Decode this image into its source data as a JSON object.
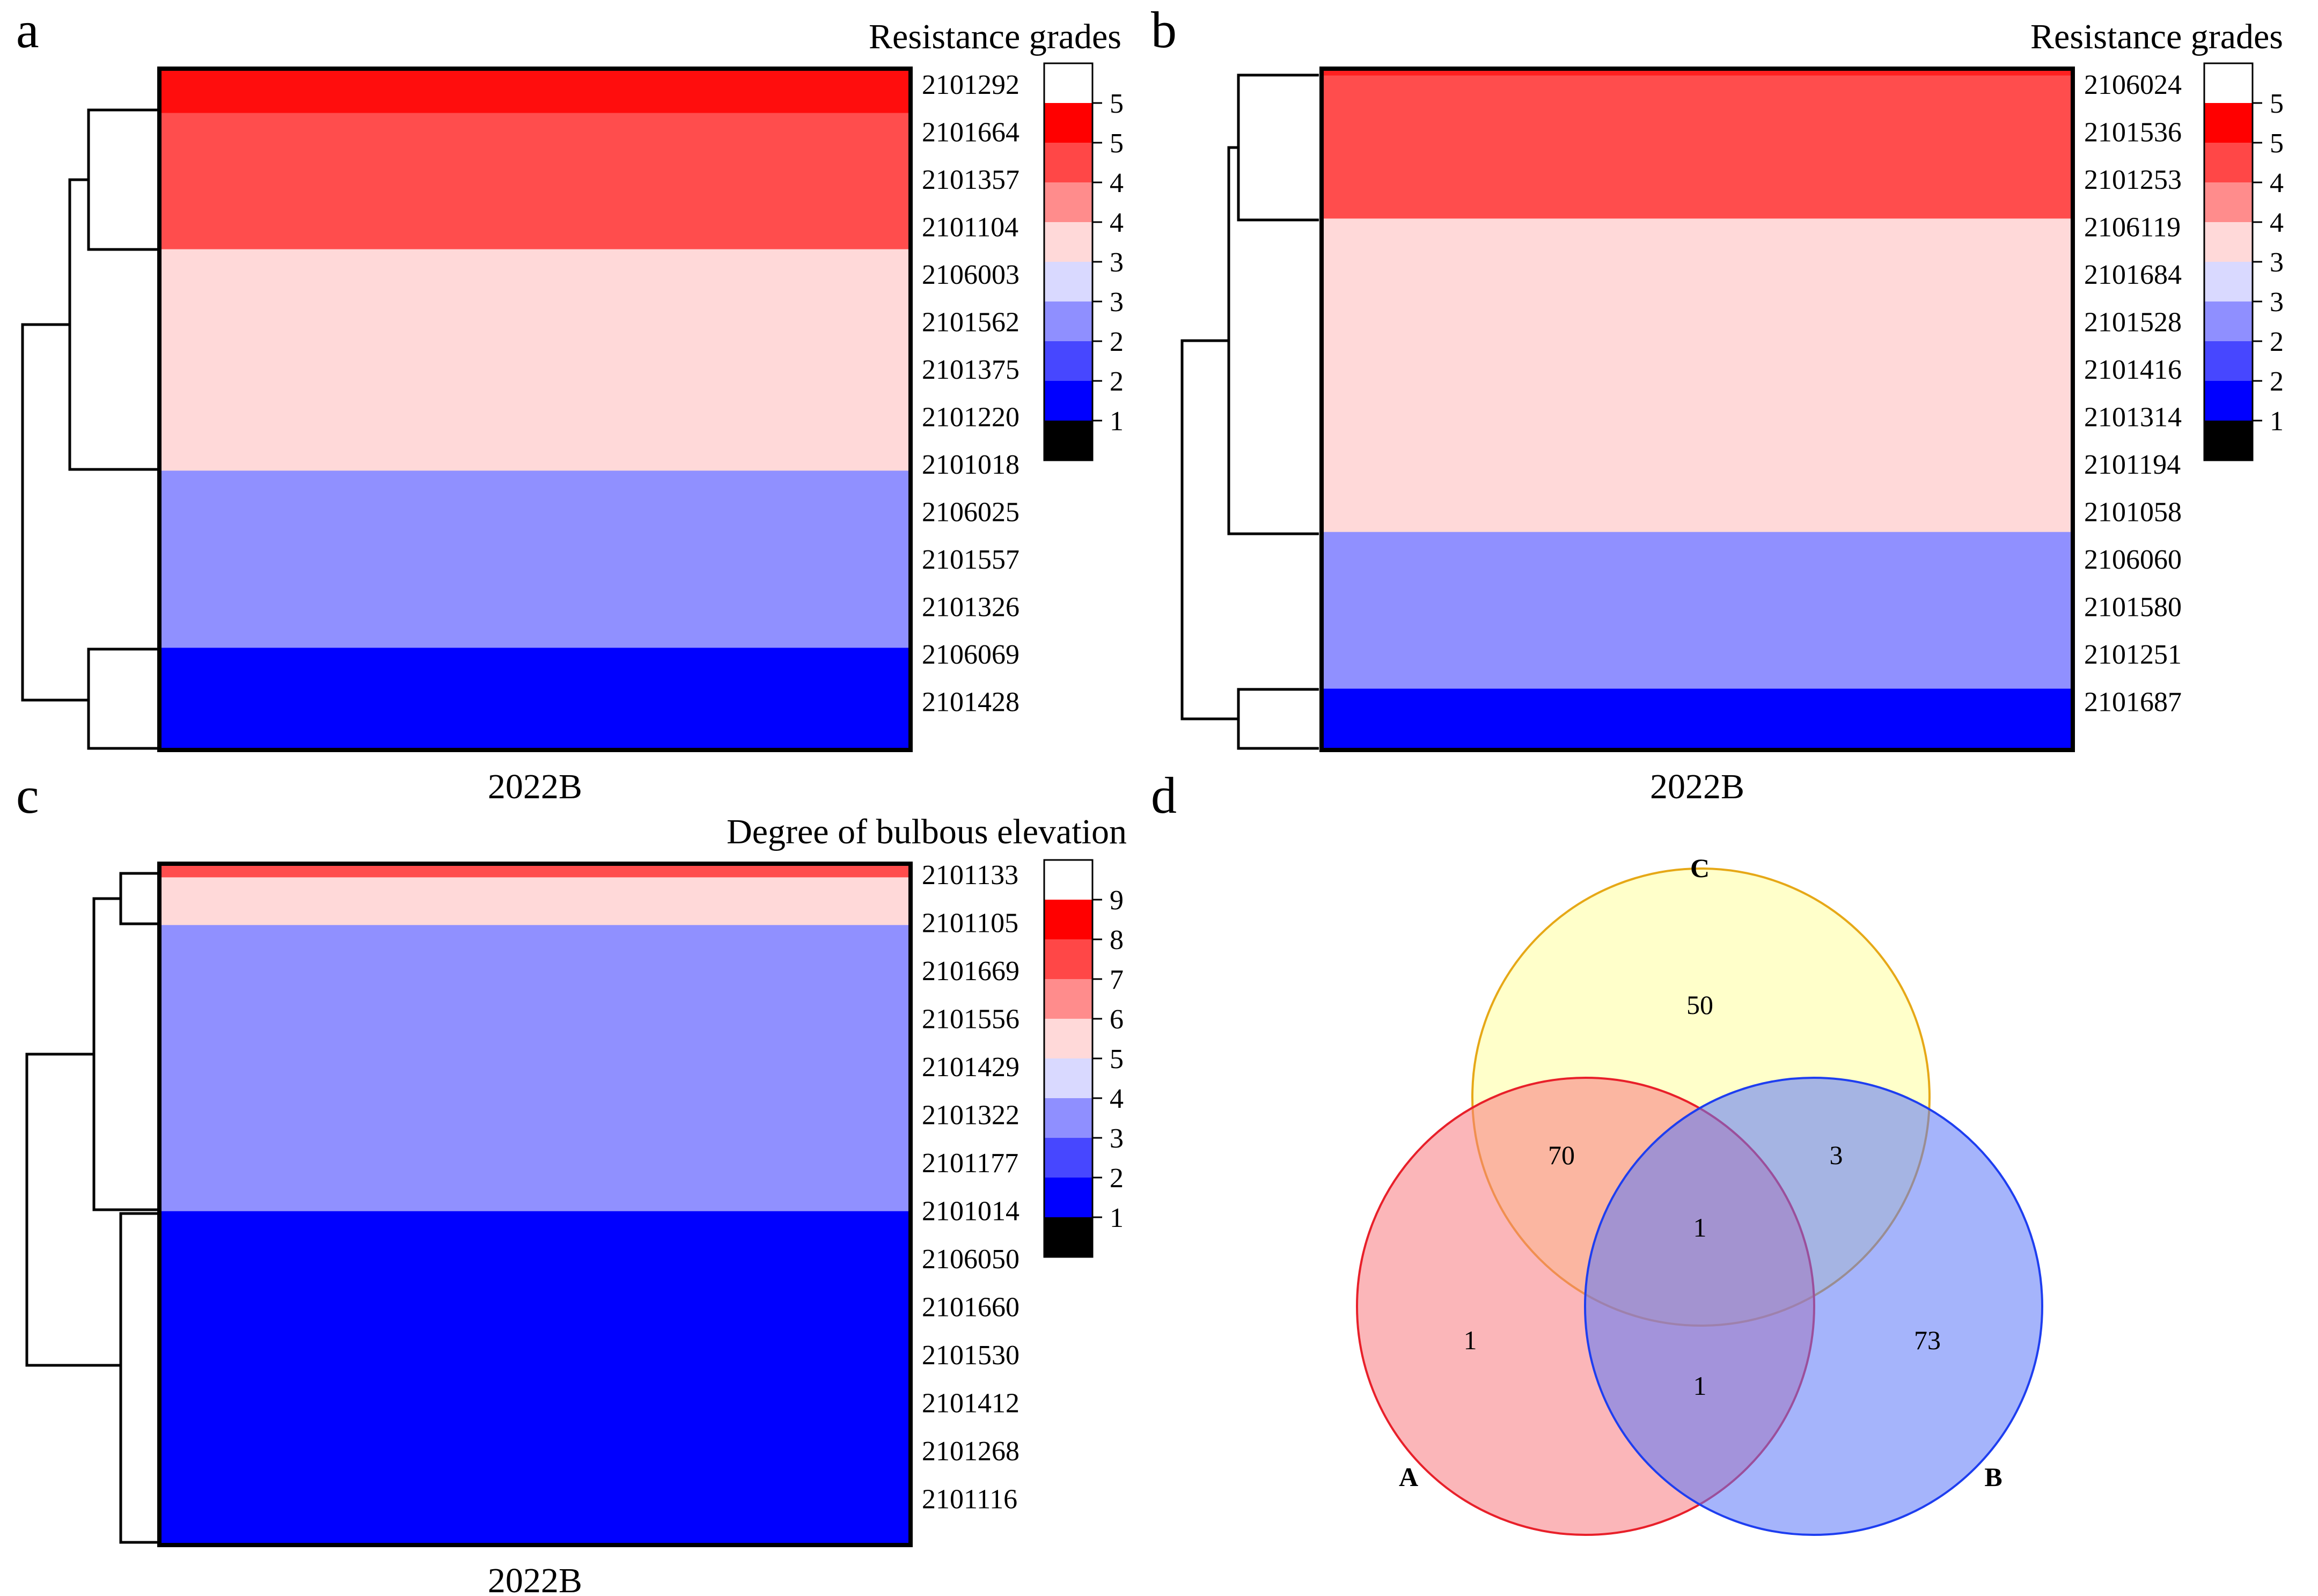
{
  "panels": [
    {
      "letter": "a",
      "legend_title": "Resistance grades",
      "xlabel": "2022B",
      "legend_colors": [
        "#ffffff",
        "#ff0000",
        "#ff4747",
        "#ff8c8c",
        "#ffd9d9",
        "#d9d9ff",
        "#8f8fff",
        "#4747ff",
        "#0000ff",
        "#000000"
      ],
      "legend_labels": [
        "5",
        "5",
        "4",
        "4",
        "3",
        "3",
        "2",
        "2",
        "1"
      ],
      "rows": [
        "2101292",
        "2101664",
        "2101357",
        "2101104",
        "2106003",
        "2101562",
        "2101375",
        "2101220",
        "2101018",
        "2106025",
        "2101557",
        "2101326",
        "2106069",
        "2101428"
      ],
      "bands": [
        {
          "frac": 0.065,
          "color": "#ff0d0d"
        },
        {
          "frac": 0.2,
          "color": "#ff4d4d"
        },
        {
          "frac": 0.325,
          "color": "#ffd9d9"
        },
        {
          "frac": 0.26,
          "color": "#9090ff"
        },
        {
          "frac": 0.15,
          "color": "#0000ff"
        }
      ]
    },
    {
      "letter": "b",
      "legend_title": "Resistance grades",
      "xlabel": "2022B",
      "legend_colors": [
        "#ffffff",
        "#ff0000",
        "#ff4747",
        "#ff8c8c",
        "#ffd9d9",
        "#d9d9ff",
        "#8f8fff",
        "#4747ff",
        "#0000ff",
        "#000000"
      ],
      "legend_labels": [
        "5",
        "5",
        "4",
        "4",
        "3",
        "3",
        "2",
        "2",
        "1"
      ],
      "rows": [
        "2106024",
        "2101536",
        "2101253",
        "2106119",
        "2101684",
        "2101528",
        "2101416",
        "2101314",
        "2101194",
        "2101058",
        "2106060",
        "2101580",
        "2101251",
        "2101687"
      ],
      "bands": [
        {
          "frac": 0.01,
          "color": "#ff2020"
        },
        {
          "frac": 0.21,
          "color": "#ff4d4d"
        },
        {
          "frac": 0.46,
          "color": "#ffd9d9"
        },
        {
          "frac": 0.23,
          "color": "#9090ff"
        },
        {
          "frac": 0.09,
          "color": "#0000ff"
        }
      ]
    },
    {
      "letter": "c",
      "legend_title": "Degree of bulbous elevation",
      "xlabel": "2022B",
      "legend_colors": [
        "#ffffff",
        "#ff0000",
        "#ff4747",
        "#ff8c8c",
        "#ffd9d9",
        "#d9d9ff",
        "#8f8fff",
        "#4747ff",
        "#0000ff",
        "#000000"
      ],
      "legend_labels": [
        "9",
        "8",
        "7",
        "6",
        "5",
        "4",
        "3",
        "2",
        "1"
      ],
      "rows": [
        "2101133",
        "2101105",
        "2101669",
        "2101556",
        "2101429",
        "2101322",
        "2101177",
        "2101014",
        "2106050",
        "2101660",
        "2101530",
        "2101412",
        "2101268",
        "2101116"
      ],
      "bands": [
        {
          "frac": 0.02,
          "color": "#ff4d4d"
        },
        {
          "frac": 0.07,
          "color": "#ffd9d9"
        },
        {
          "frac": 0.42,
          "color": "#9090ff"
        },
        {
          "frac": 0.49,
          "color": "#0000ff"
        }
      ]
    }
  ],
  "venn": {
    "letter": "d",
    "sets": [
      {
        "name": "C",
        "fill": "#ffff9e",
        "stroke": "#e6a817"
      },
      {
        "name": "A",
        "fill": "#f77a80",
        "stroke": "#e8202a"
      },
      {
        "name": "B",
        "fill": "#5b76f7",
        "stroke": "#1e3ef0"
      }
    ],
    "counts": {
      "C_only": "50",
      "A_C": "70",
      "B_C": "3",
      "A_B_C": "1",
      "A_only": "1",
      "A_B": "1",
      "B_only": "73"
    }
  },
  "chart_data": [
    {
      "type": "heatmap",
      "panel": "a",
      "xlabel": "2022B",
      "legend_title": "Resistance grades",
      "categories": [
        "2101292",
        "2101664",
        "2101357",
        "2101104",
        "2106003",
        "2101562",
        "2101375",
        "2101220",
        "2101018",
        "2106025",
        "2101557",
        "2101326",
        "2106069",
        "2101428"
      ],
      "grade_blocks": [
        5,
        4,
        3,
        2,
        1
      ],
      "legend_scale": [
        5,
        5,
        4,
        4,
        3,
        3,
        2,
        2,
        1
      ]
    },
    {
      "type": "heatmap",
      "panel": "b",
      "xlabel": "2022B",
      "legend_title": "Resistance grades",
      "categories": [
        "2106024",
        "2101536",
        "2101253",
        "2106119",
        "2101684",
        "2101528",
        "2101416",
        "2101314",
        "2101194",
        "2101058",
        "2106060",
        "2101580",
        "2101251",
        "2101687"
      ],
      "grade_blocks": [
        5,
        4,
        3,
        2,
        1
      ],
      "legend_scale": [
        5,
        5,
        4,
        4,
        3,
        3,
        2,
        2,
        1
      ]
    },
    {
      "type": "heatmap",
      "panel": "c",
      "xlabel": "2022B",
      "legend_title": "Degree of bulbous elevation",
      "categories": [
        "2101133",
        "2101105",
        "2101669",
        "2101556",
        "2101429",
        "2101322",
        "2101177",
        "2101014",
        "2106050",
        "2101660",
        "2101530",
        "2101412",
        "2101268",
        "2101116"
      ],
      "grade_blocks": [
        7,
        5,
        3,
        1
      ],
      "legend_scale": [
        9,
        8,
        7,
        6,
        5,
        4,
        3,
        2,
        1
      ]
    },
    {
      "type": "venn",
      "panel": "d",
      "sets": [
        "A",
        "B",
        "C"
      ],
      "regions": {
        "C only": 50,
        "A∩C": 70,
        "B∩C": 3,
        "A∩B∩C": 1,
        "A only": 1,
        "A∩B": 1,
        "B only": 73
      }
    }
  ]
}
